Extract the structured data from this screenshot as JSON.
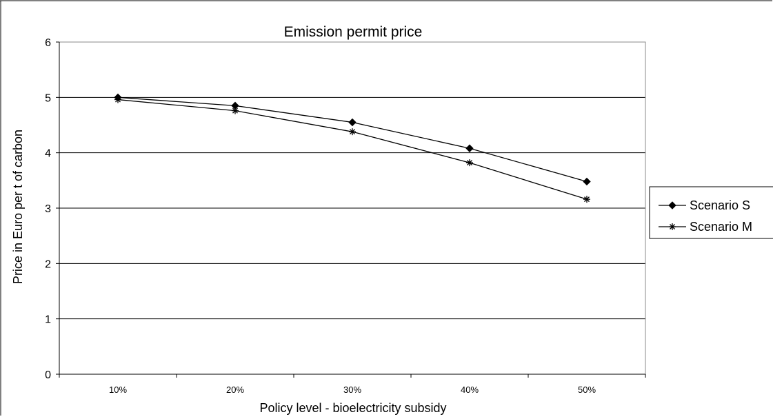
{
  "chart_data": {
    "type": "line",
    "title": "Emission permit price",
    "xlabel": "Policy level - bioelectricity subsidy",
    "ylabel": "Price in Euro per t of carbon",
    "categories": [
      "10%",
      "20%",
      "30%",
      "40%",
      "50%"
    ],
    "ylim": [
      0,
      6
    ],
    "yticks": [
      "0",
      "1",
      "2",
      "3",
      "4",
      "5",
      "6"
    ],
    "grid": true,
    "legend_position": "right",
    "series": [
      {
        "name": "Scenario S",
        "marker": "diamond",
        "color": "#000000",
        "values": [
          5.0,
          4.85,
          4.55,
          4.08,
          3.48
        ]
      },
      {
        "name": "Scenario M",
        "marker": "asterisk",
        "color": "#000000",
        "values": [
          4.96,
          4.76,
          4.38,
          3.82,
          3.16
        ]
      }
    ]
  }
}
